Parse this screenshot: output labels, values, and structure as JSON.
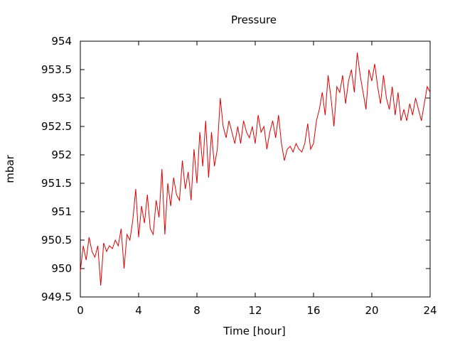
{
  "chart_data": {
    "type": "line",
    "title": "Pressure",
    "xlabel": "Time [hour]",
    "ylabel": "mbar",
    "xlim": [
      0,
      24
    ],
    "ylim": [
      949.5,
      954
    ],
    "x_ticks": [
      0,
      4,
      8,
      12,
      16,
      20,
      24
    ],
    "x_tick_labels": [
      "0",
      "4",
      "8",
      "12",
      "16",
      "20",
      "24"
    ],
    "y_ticks": [
      949.5,
      950,
      950.5,
      951,
      951.5,
      952,
      952.5,
      953,
      953.5,
      954
    ],
    "y_tick_labels": [
      "949.5",
      "950",
      "950.5",
      "951",
      "951.5",
      "952",
      "952.5",
      "953",
      "953.5",
      "954"
    ],
    "grid": false,
    "legend": "none",
    "series": [
      {
        "color": "#e00000",
        "x": [
          0,
          0.2,
          0.4,
          0.6,
          0.8,
          1,
          1.2,
          1.4,
          1.6,
          1.8,
          2,
          2.2,
          2.4,
          2.6,
          2.8,
          3,
          3.2,
          3.4,
          3.6,
          3.8,
          4,
          4.2,
          4.4,
          4.6,
          4.8,
          5,
          5.2,
          5.4,
          5.6,
          5.8,
          6,
          6.2,
          6.4,
          6.6,
          6.8,
          7,
          7.2,
          7.4,
          7.6,
          7.8,
          8,
          8.2,
          8.4,
          8.6,
          8.8,
          9,
          9.2,
          9.4,
          9.6,
          9.8,
          10,
          10.2,
          10.4,
          10.6,
          10.8,
          11,
          11.2,
          11.4,
          11.6,
          11.8,
          12,
          12.2,
          12.4,
          12.6,
          12.8,
          13,
          13.2,
          13.4,
          13.6,
          13.8,
          14,
          14.2,
          14.4,
          14.6,
          14.8,
          15,
          15.2,
          15.4,
          15.6,
          15.8,
          16,
          16.2,
          16.4,
          16.6,
          16.8,
          17,
          17.2,
          17.4,
          17.6,
          17.8,
          18,
          18.2,
          18.4,
          18.6,
          18.8,
          19,
          19.2,
          19.4,
          19.6,
          19.8,
          20,
          20.2,
          20.4,
          20.6,
          20.8,
          21,
          21.2,
          21.4,
          21.6,
          21.8,
          22,
          22.2,
          22.4,
          22.6,
          22.8,
          23,
          23.2,
          23.4,
          23.6,
          23.8,
          24
        ],
        "y": [
          949.95,
          950.4,
          950.15,
          950.55,
          950.3,
          950.2,
          950.4,
          949.7,
          950.45,
          950.3,
          950.4,
          950.35,
          950.5,
          950.4,
          950.7,
          950,
          950.6,
          950.5,
          950.85,
          951.4,
          950.55,
          951.1,
          950.8,
          951.3,
          950.7,
          950.6,
          951.2,
          950.9,
          951.75,
          950.6,
          951.5,
          951.1,
          951.6,
          951.3,
          951.2,
          951.9,
          951.4,
          951.7,
          951.2,
          952.1,
          951.5,
          952.4,
          951.8,
          952.6,
          951.6,
          952.4,
          951.8,
          952.1,
          953,
          952.5,
          952.3,
          952.6,
          952.4,
          952.2,
          952.5,
          952.2,
          952.6,
          952.4,
          952.3,
          952.5,
          952.2,
          952.7,
          952.4,
          952.5,
          952.1,
          952.4,
          952.6,
          952.3,
          952.7,
          952.2,
          951.9,
          952.1,
          952.15,
          952.05,
          952.2,
          952.1,
          952.05,
          952.2,
          952.55,
          952.1,
          952.2,
          952.6,
          952.8,
          953.1,
          952.7,
          953.4,
          953,
          952.5,
          953.2,
          953.1,
          953.4,
          952.9,
          953.3,
          953.5,
          953.1,
          953.8,
          953.4,
          953.1,
          952.8,
          953.5,
          953.3,
          953.6,
          953.2,
          952.9,
          953.4,
          953,
          952.8,
          953.2,
          952.7,
          953.1,
          952.6,
          952.8,
          952.6,
          952.9,
          952.7,
          953,
          952.8,
          952.6,
          952.9,
          953.2,
          953.1
        ]
      }
    ]
  }
}
